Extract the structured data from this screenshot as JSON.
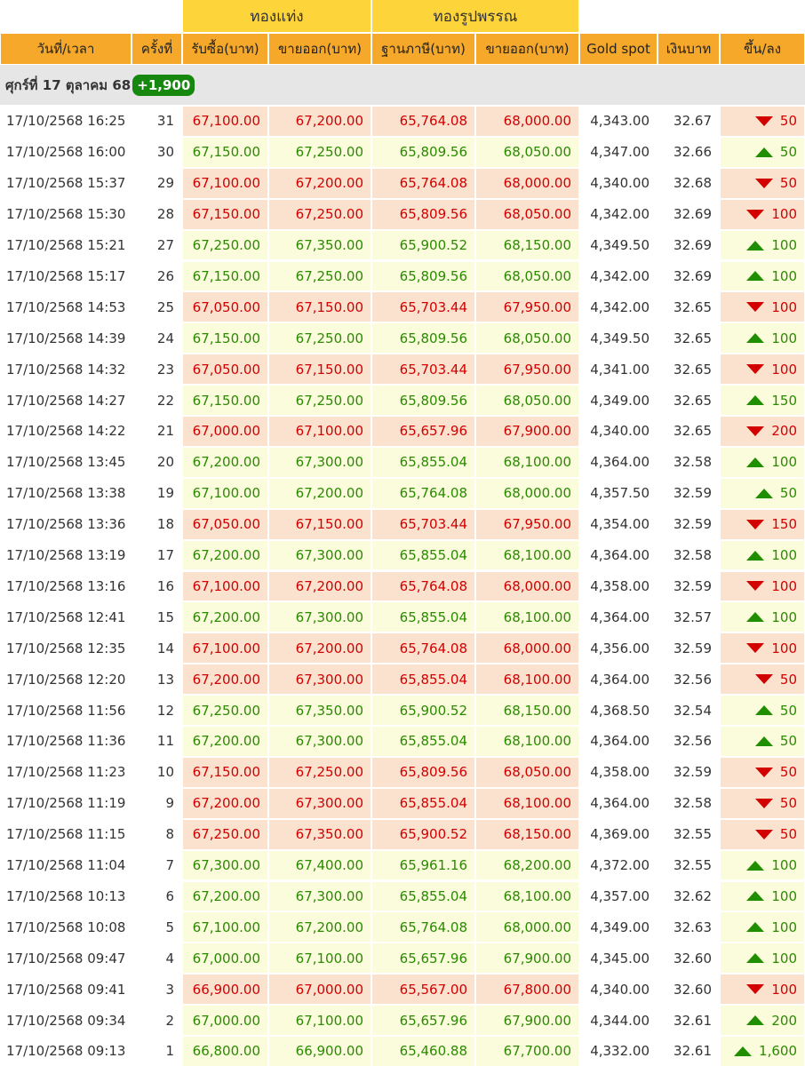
{
  "group_headers": [
    "ทองแท่ง",
    "ทองรูปพรรณ"
  ],
  "columns": [
    "วันที่/เวลา",
    "ครั้งที่",
    "รับซื้อ(บาท)",
    "ขายออก(บาท)",
    "ฐานภาษี(บาท)",
    "ขายออก(บาท)",
    "Gold spot",
    "เงินบาท",
    "ขึ้น/ลง"
  ],
  "day": {
    "label": "ศุกร์ที่ 17 ตุลาคม 68",
    "change": "+1,900"
  },
  "rows": [
    {
      "direction": "down",
      "cells": [
        "17/10/2568 16:25",
        "31",
        "67,100.00",
        "67,200.00",
        "65,764.08",
        "68,000.00",
        "4,343.00",
        "32.67",
        "50"
      ]
    },
    {
      "direction": "up",
      "cells": [
        "17/10/2568 16:00",
        "30",
        "67,150.00",
        "67,250.00",
        "65,809.56",
        "68,050.00",
        "4,347.00",
        "32.66",
        "50"
      ]
    },
    {
      "direction": "down",
      "cells": [
        "17/10/2568 15:37",
        "29",
        "67,100.00",
        "67,200.00",
        "65,764.08",
        "68,000.00",
        "4,340.00",
        "32.68",
        "50"
      ]
    },
    {
      "direction": "down",
      "cells": [
        "17/10/2568 15:30",
        "28",
        "67,150.00",
        "67,250.00",
        "65,809.56",
        "68,050.00",
        "4,342.00",
        "32.69",
        "100"
      ]
    },
    {
      "direction": "up",
      "cells": [
        "17/10/2568 15:21",
        "27",
        "67,250.00",
        "67,350.00",
        "65,900.52",
        "68,150.00",
        "4,349.50",
        "32.69",
        "100"
      ]
    },
    {
      "direction": "up",
      "cells": [
        "17/10/2568 15:17",
        "26",
        "67,150.00",
        "67,250.00",
        "65,809.56",
        "68,050.00",
        "4,342.00",
        "32.69",
        "100"
      ]
    },
    {
      "direction": "down",
      "cells": [
        "17/10/2568 14:53",
        "25",
        "67,050.00",
        "67,150.00",
        "65,703.44",
        "67,950.00",
        "4,342.00",
        "32.65",
        "100"
      ]
    },
    {
      "direction": "up",
      "cells": [
        "17/10/2568 14:39",
        "24",
        "67,150.00",
        "67,250.00",
        "65,809.56",
        "68,050.00",
        "4,349.50",
        "32.65",
        "100"
      ]
    },
    {
      "direction": "down",
      "cells": [
        "17/10/2568 14:32",
        "23",
        "67,050.00",
        "67,150.00",
        "65,703.44",
        "67,950.00",
        "4,341.00",
        "32.65",
        "100"
      ]
    },
    {
      "direction": "up",
      "cells": [
        "17/10/2568 14:27",
        "22",
        "67,150.00",
        "67,250.00",
        "65,809.56",
        "68,050.00",
        "4,349.00",
        "32.65",
        "150"
      ]
    },
    {
      "direction": "down",
      "cells": [
        "17/10/2568 14:22",
        "21",
        "67,000.00",
        "67,100.00",
        "65,657.96",
        "67,900.00",
        "4,340.00",
        "32.65",
        "200"
      ]
    },
    {
      "direction": "up",
      "cells": [
        "17/10/2568 13:45",
        "20",
        "67,200.00",
        "67,300.00",
        "65,855.04",
        "68,100.00",
        "4,364.00",
        "32.58",
        "100"
      ]
    },
    {
      "direction": "up",
      "cells": [
        "17/10/2568 13:38",
        "19",
        "67,100.00",
        "67,200.00",
        "65,764.08",
        "68,000.00",
        "4,357.50",
        "32.59",
        "50"
      ]
    },
    {
      "direction": "down",
      "cells": [
        "17/10/2568 13:36",
        "18",
        "67,050.00",
        "67,150.00",
        "65,703.44",
        "67,950.00",
        "4,354.00",
        "32.59",
        "150"
      ]
    },
    {
      "direction": "up",
      "cells": [
        "17/10/2568 13:19",
        "17",
        "67,200.00",
        "67,300.00",
        "65,855.04",
        "68,100.00",
        "4,364.00",
        "32.58",
        "100"
      ]
    },
    {
      "direction": "down",
      "cells": [
        "17/10/2568 13:16",
        "16",
        "67,100.00",
        "67,200.00",
        "65,764.08",
        "68,000.00",
        "4,358.00",
        "32.59",
        "100"
      ]
    },
    {
      "direction": "up",
      "cells": [
        "17/10/2568 12:41",
        "15",
        "67,200.00",
        "67,300.00",
        "65,855.04",
        "68,100.00",
        "4,364.00",
        "32.57",
        "100"
      ]
    },
    {
      "direction": "down",
      "cells": [
        "17/10/2568 12:35",
        "14",
        "67,100.00",
        "67,200.00",
        "65,764.08",
        "68,000.00",
        "4,356.00",
        "32.59",
        "100"
      ]
    },
    {
      "direction": "down",
      "cells": [
        "17/10/2568 12:20",
        "13",
        "67,200.00",
        "67,300.00",
        "65,855.04",
        "68,100.00",
        "4,364.00",
        "32.56",
        "50"
      ]
    },
    {
      "direction": "up",
      "cells": [
        "17/10/2568 11:56",
        "12",
        "67,250.00",
        "67,350.00",
        "65,900.52",
        "68,150.00",
        "4,368.50",
        "32.54",
        "50"
      ]
    },
    {
      "direction": "up",
      "cells": [
        "17/10/2568 11:36",
        "11",
        "67,200.00",
        "67,300.00",
        "65,855.04",
        "68,100.00",
        "4,364.00",
        "32.56",
        "50"
      ]
    },
    {
      "direction": "down",
      "cells": [
        "17/10/2568 11:23",
        "10",
        "67,150.00",
        "67,250.00",
        "65,809.56",
        "68,050.00",
        "4,358.00",
        "32.59",
        "50"
      ]
    },
    {
      "direction": "down",
      "cells": [
        "17/10/2568 11:19",
        "9",
        "67,200.00",
        "67,300.00",
        "65,855.04",
        "68,100.00",
        "4,364.00",
        "32.58",
        "50"
      ]
    },
    {
      "direction": "down",
      "cells": [
        "17/10/2568 11:15",
        "8",
        "67,250.00",
        "67,350.00",
        "65,900.52",
        "68,150.00",
        "4,369.00",
        "32.55",
        "50"
      ]
    },
    {
      "direction": "up",
      "cells": [
        "17/10/2568 11:04",
        "7",
        "67,300.00",
        "67,400.00",
        "65,961.16",
        "68,200.00",
        "4,372.00",
        "32.55",
        "100"
      ]
    },
    {
      "direction": "up",
      "cells": [
        "17/10/2568 10:13",
        "6",
        "67,200.00",
        "67,300.00",
        "65,855.04",
        "68,100.00",
        "4,357.00",
        "32.62",
        "100"
      ]
    },
    {
      "direction": "up",
      "cells": [
        "17/10/2568 10:08",
        "5",
        "67,100.00",
        "67,200.00",
        "65,764.08",
        "68,000.00",
        "4,349.00",
        "32.63",
        "100"
      ]
    },
    {
      "direction": "up",
      "cells": [
        "17/10/2568 09:47",
        "4",
        "67,000.00",
        "67,100.00",
        "65,657.96",
        "67,900.00",
        "4,345.00",
        "32.60",
        "100"
      ]
    },
    {
      "direction": "down",
      "cells": [
        "17/10/2568 09:41",
        "3",
        "66,900.00",
        "67,000.00",
        "65,567.00",
        "67,800.00",
        "4,340.00",
        "32.60",
        "100"
      ]
    },
    {
      "direction": "up",
      "cells": [
        "17/10/2568 09:34",
        "2",
        "67,000.00",
        "67,100.00",
        "65,657.96",
        "67,900.00",
        "4,344.00",
        "32.61",
        "200"
      ]
    },
    {
      "direction": "up",
      "cells": [
        "17/10/2568 09:13",
        "1",
        "66,800.00",
        "66,900.00",
        "65,460.88",
        "67,700.00",
        "4,332.00",
        "32.61",
        "1,600"
      ]
    }
  ]
}
